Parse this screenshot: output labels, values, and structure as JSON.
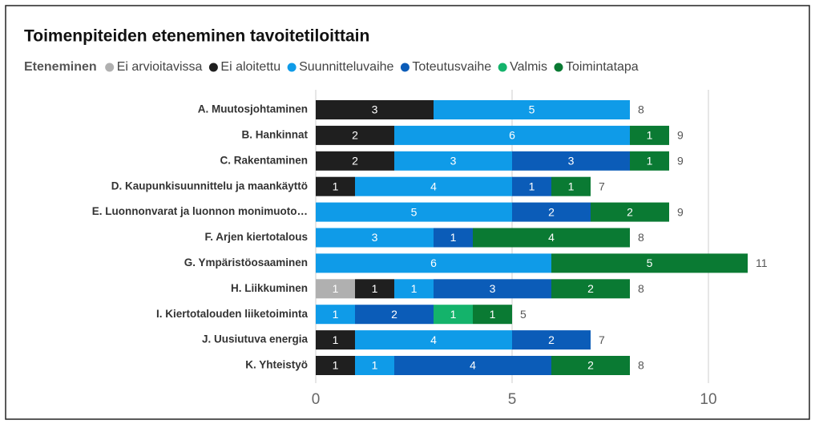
{
  "chart_data": {
    "type": "stacked-barh",
    "title": "Toimenpiteiden eteneminen tavoitetiloittain",
    "legend_title": "Eteneminen",
    "categories": [
      "A. Muutosjohtaminen",
      "B. Hankinnat",
      "C. Rakentaminen",
      "D. Kaupunkisuunnittelu ja maankäyttö",
      "E. Luonnonvarat ja luonnon monimuoto…",
      "F. Arjen kiertotalous",
      "G. Ympäristöosaaminen",
      "H. Liikkuminen",
      "I. Kiertotalouden liiketoiminta",
      "J. Uusiutuva energia",
      "K. Yhteistyö"
    ],
    "series": [
      {
        "name": "Ei arvioitavissa",
        "color": "#b0b0b0",
        "values": [
          null,
          null,
          null,
          null,
          null,
          null,
          null,
          1,
          null,
          null,
          null
        ]
      },
      {
        "name": "Ei aloitettu",
        "color": "#1f1f1f",
        "values": [
          3,
          2,
          2,
          1,
          null,
          null,
          null,
          1,
          null,
          1,
          1
        ]
      },
      {
        "name": "Suunnitteluvaihe",
        "color": "#0f9be8",
        "values": [
          5,
          6,
          3,
          4,
          5,
          3,
          6,
          1,
          1,
          4,
          1
        ]
      },
      {
        "name": "Toteutusvaihe",
        "color": "#0b5cb8",
        "values": [
          null,
          null,
          3,
          1,
          2,
          1,
          null,
          3,
          2,
          2,
          4
        ]
      },
      {
        "name": "Valmis",
        "color": "#14b36b",
        "values": [
          null,
          null,
          null,
          null,
          null,
          null,
          null,
          null,
          1,
          null,
          null
        ]
      },
      {
        "name": "Toimintatapa",
        "color": "#0a7a33",
        "values": [
          null,
          1,
          1,
          1,
          2,
          4,
          5,
          2,
          1,
          null,
          2
        ]
      }
    ],
    "totals": [
      8,
      9,
      9,
      7,
      9,
      8,
      11,
      8,
      5,
      7,
      8
    ],
    "xlim": [
      0,
      12
    ],
    "xticks": [
      0,
      5,
      10
    ],
    "grid": true
  }
}
